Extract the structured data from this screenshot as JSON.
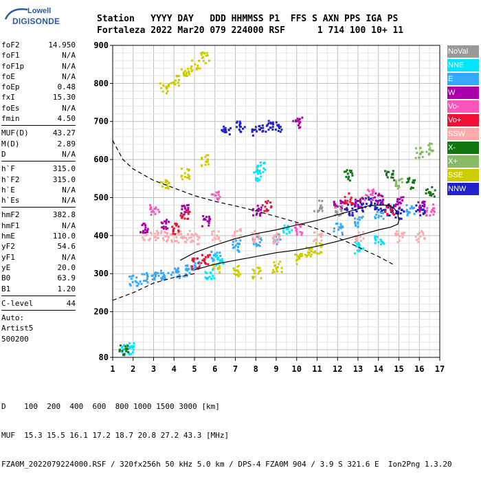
{
  "logo": {
    "brand": "Lowell",
    "product": "DIGISONDE"
  },
  "header": {
    "line1": "Station   YYYY DAY   DDD HHMMSS P1  FFS S AXN PPS IGA PS",
    "line2": "Fortaleza 2022 Mar20 079 224000 RSF      1 714 100 10+ 11"
  },
  "params": {
    "group1": [
      {
        "label": "foF2",
        "value": "14.950"
      },
      {
        "label": "foF1",
        "value": "N/A"
      },
      {
        "label": "foF1p",
        "value": "N/A"
      },
      {
        "label": "foE",
        "value": "N/A"
      },
      {
        "label": "foEp",
        "value": "0.48"
      },
      {
        "label": "fxI",
        "value": "15.30"
      },
      {
        "label": "foEs",
        "value": "N/A"
      },
      {
        "label": "fmin",
        "value": "4.50"
      }
    ],
    "group2": [
      {
        "label": "MUF(D)",
        "value": "43.27"
      },
      {
        "label": "M(D)",
        "value": "2.89"
      },
      {
        "label": "D",
        "value": "N/A"
      }
    ],
    "group3": [
      {
        "label": "h`F",
        "value": "315.0"
      },
      {
        "label": "h`F2",
        "value": "315.0"
      },
      {
        "label": "h`E",
        "value": "N/A"
      },
      {
        "label": "h`Es",
        "value": "N/A"
      }
    ],
    "group4": [
      {
        "label": "hmF2",
        "value": "382.8"
      },
      {
        "label": "hmF1",
        "value": "N/A"
      },
      {
        "label": "hmE",
        "value": "110.0"
      },
      {
        "label": "yF2",
        "value": "54.6"
      },
      {
        "label": "yF1",
        "value": "N/A"
      },
      {
        "label": "yE",
        "value": "20.0"
      },
      {
        "label": "B0",
        "value": "63.9"
      },
      {
        "label": "B1",
        "value": "1.20"
      }
    ],
    "group5": [
      {
        "label": "C-level",
        "value": "44"
      }
    ],
    "auto": [
      "Auto:",
      "Artist5",
      "500200"
    ]
  },
  "legend": [
    {
      "label": "NoVal",
      "color": "#999999",
      "fg": "#ffffff"
    },
    {
      "label": "NNE",
      "color": "#00e5ff",
      "fg": "#ffffff"
    },
    {
      "label": "E",
      "color": "#33aaff",
      "fg": "#ffffff"
    },
    {
      "label": "W",
      "color": "#aa00aa",
      "fg": "#ffffff"
    },
    {
      "label": "Vo-",
      "color": "#ff55bb",
      "fg": "#ffffff"
    },
    {
      "label": "Vo+",
      "color": "#ee1133",
      "fg": "#ffffff"
    },
    {
      "label": "SSW",
      "color": "#ffaaaa",
      "fg": "#ffffff"
    },
    {
      "label": "X-",
      "color": "#117711",
      "fg": "#ffffff"
    },
    {
      "label": "X+",
      "color": "#88bb66",
      "fg": "#ffffff"
    },
    {
      "label": "SSE",
      "color": "#cccc00",
      "fg": "#ffffff"
    },
    {
      "label": "NNW",
      "color": "#2222cc",
      "fg": "#ffffff"
    }
  ],
  "chart_data": {
    "type": "scatter",
    "xlim": [
      1,
      17
    ],
    "ylim": [
      80,
      900
    ],
    "x_ticks": [
      1,
      2,
      3,
      4,
      5,
      6,
      7,
      8,
      9,
      10,
      11,
      12,
      13,
      14,
      15,
      16,
      17
    ],
    "y_ticks": [
      80,
      200,
      300,
      400,
      500,
      600,
      700,
      800,
      900
    ],
    "grid": true,
    "series": [
      {
        "name": "SSE",
        "color": "#cccc00",
        "points": [
          [
            3.5,
            790
          ],
          [
            4.0,
            810
          ],
          [
            4.5,
            830
          ],
          [
            5.0,
            850
          ],
          [
            5.5,
            870
          ],
          [
            6.0,
            320
          ],
          [
            7.0,
            310
          ],
          [
            8.0,
            305
          ],
          [
            9.0,
            320
          ],
          [
            10.0,
            340
          ],
          [
            10.5,
            360
          ],
          [
            11.0,
            370
          ],
          [
            3.5,
            540
          ],
          [
            4.5,
            565
          ],
          [
            5.5,
            600
          ]
        ]
      },
      {
        "name": "E",
        "color": "#33aaff",
        "points": [
          [
            2.0,
            285
          ],
          [
            2.5,
            290
          ],
          [
            3.0,
            295
          ],
          [
            3.5,
            300
          ],
          [
            4.0,
            305
          ],
          [
            4.5,
            310
          ],
          [
            5.0,
            320
          ],
          [
            6.0,
            350
          ],
          [
            7.0,
            375
          ],
          [
            8.0,
            390
          ],
          [
            9.0,
            395
          ],
          [
            12.0,
            420
          ],
          [
            13.0,
            440
          ],
          [
            14.0,
            460
          ],
          [
            15.5,
            470
          ]
        ]
      },
      {
        "name": "NNW",
        "color": "#2222cc",
        "points": [
          [
            8.0,
            680
          ],
          [
            8.5,
            690
          ],
          [
            9.0,
            690
          ],
          [
            12.5,
            470
          ],
          [
            13.0,
            480
          ],
          [
            13.5,
            490
          ],
          [
            14.0,
            480
          ],
          [
            14.5,
            470
          ],
          [
            15.0,
            460
          ],
          [
            16.0,
            470
          ],
          [
            6.5,
            680
          ],
          [
            7.2,
            690
          ]
        ]
      },
      {
        "name": "SSW",
        "color": "#ffaaaa",
        "points": [
          [
            2.5,
            400
          ],
          [
            3.0,
            405
          ],
          [
            3.5,
            400
          ],
          [
            4.0,
            395
          ],
          [
            4.5,
            400
          ],
          [
            5.0,
            395
          ],
          [
            6.0,
            400
          ],
          [
            7.0,
            405
          ],
          [
            8.0,
            400
          ],
          [
            9.0,
            395
          ],
          [
            11.0,
            400
          ],
          [
            13.0,
            400
          ],
          [
            15.0,
            400
          ],
          [
            16.0,
            400
          ]
        ]
      },
      {
        "name": "W",
        "color": "#aa00aa",
        "points": [
          [
            2.5,
            420
          ],
          [
            3.5,
            430
          ],
          [
            4.5,
            470
          ],
          [
            5.5,
            440
          ],
          [
            8.0,
            470
          ],
          [
            12.0,
            480
          ],
          [
            13.0,
            490
          ],
          [
            14.0,
            500
          ],
          [
            15.0,
            490
          ],
          [
            16.0,
            480
          ],
          [
            10.0,
            700
          ]
        ]
      },
      {
        "name": "Vo+",
        "color": "#ee1133",
        "points": [
          [
            5.0,
            330
          ],
          [
            5.5,
            340
          ],
          [
            4.0,
            420
          ],
          [
            4.5,
            460
          ],
          [
            8.5,
            480
          ],
          [
            12.5,
            500
          ],
          [
            14.5,
            470
          ]
        ]
      },
      {
        "name": "NNE",
        "color": "#00e5ff",
        "points": [
          [
            8.0,
            560
          ],
          [
            8.2,
            580
          ],
          [
            5.7,
            300
          ],
          [
            6.2,
            340
          ],
          [
            9.5,
            420
          ],
          [
            13.0,
            370
          ],
          [
            14.0,
            390
          ],
          [
            1.6,
            100
          ],
          [
            1.8,
            105
          ]
        ]
      },
      {
        "name": "X-",
        "color": "#117711",
        "points": [
          [
            1.5,
            100
          ],
          [
            12.5,
            560
          ],
          [
            14.5,
            560
          ],
          [
            15.5,
            540
          ],
          [
            16.5,
            520
          ]
        ]
      },
      {
        "name": "X+",
        "color": "#88bb66",
        "points": [
          [
            16.0,
            620
          ],
          [
            16.5,
            630
          ],
          [
            15.0,
            540
          ]
        ]
      },
      {
        "name": "Vo-",
        "color": "#ff55bb",
        "points": [
          [
            3.0,
            470
          ],
          [
            6.0,
            510
          ],
          [
            10.0,
            420
          ],
          [
            13.5,
            510
          ],
          [
            16.5,
            470
          ]
        ]
      },
      {
        "name": "NoVal",
        "color": "#999999",
        "points": [
          [
            11.0,
            480
          ],
          [
            12.0,
            470
          ]
        ]
      }
    ],
    "dashed_curve": [
      [
        1.0,
        650
      ],
      [
        1.5,
        600
      ],
      [
        2.0,
        575
      ],
      [
        3.0,
        545
      ],
      [
        4.0,
        525
      ],
      [
        5.0,
        505
      ],
      [
        6.0,
        490
      ],
      [
        7.0,
        478
      ],
      [
        8.0,
        465
      ],
      [
        9.0,
        450
      ],
      [
        10.0,
        435
      ],
      [
        11.0,
        418
      ],
      [
        12.0,
        395
      ],
      [
        13.0,
        370
      ],
      [
        14.0,
        345
      ],
      [
        14.7,
        325
      ]
    ],
    "dashed_lower": [
      [
        1.0,
        230
      ],
      [
        2.0,
        250
      ],
      [
        3.0,
        275
      ],
      [
        4.0,
        290
      ],
      [
        5.0,
        300
      ]
    ],
    "solid_curve": [
      [
        5.0,
        310
      ],
      [
        6.0,
        325
      ],
      [
        7.0,
        335
      ],
      [
        8.0,
        345
      ],
      [
        9.0,
        355
      ],
      [
        10.0,
        362
      ],
      [
        11.0,
        372
      ],
      [
        12.0,
        385
      ],
      [
        13.0,
        400
      ],
      [
        14.0,
        415
      ],
      [
        14.6,
        422
      ],
      [
        14.95,
        430
      ],
      [
        15.0,
        440
      ],
      [
        14.95,
        455
      ],
      [
        14.8,
        470
      ],
      [
        14.5,
        480
      ],
      [
        14.0,
        480
      ],
      [
        13.5,
        478
      ],
      [
        13.0,
        470
      ],
      [
        12.0,
        455
      ],
      [
        11.0,
        440
      ],
      [
        10.0,
        428
      ],
      [
        9.0,
        415
      ],
      [
        8.0,
        405
      ],
      [
        7.0,
        392
      ],
      [
        6.0,
        375
      ],
      [
        5.0,
        355
      ],
      [
        4.3,
        335
      ]
    ]
  },
  "bottom": {
    "line1": "D    100  200  400  600  800 1000 1500 3000 [km]",
    "line2": "MUF  15.3 15.5 16.1 17.2 18.7 20.8 27.2 43.3 [MHz]",
    "line3": "FZA0M_2022079224000.RSF / 320fx256h 50 kHz 5.0 km / DPS-4 FZA0M 904 / 3.9 S 321.6 E  Ion2Png 1.3.20"
  }
}
